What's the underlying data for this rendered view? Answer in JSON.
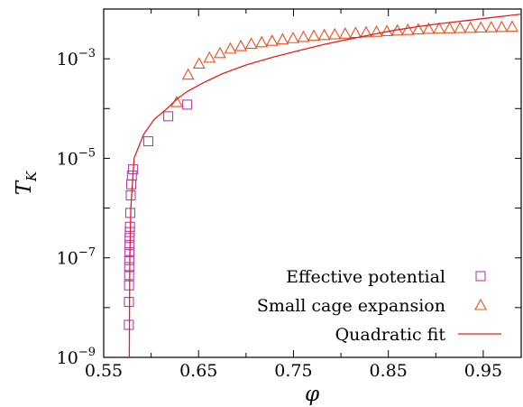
{
  "chart_data": {
    "type": "scatter",
    "xlabel": "φ",
    "ylabel": "T_K",
    "ylabel_main": "T",
    "ylabel_sub": "K",
    "xlim": [
      0.55,
      0.99
    ],
    "ylim": [
      1e-09,
      0.01
    ],
    "yscale": "log",
    "xticks": [
      0.55,
      0.65,
      0.75,
      0.85,
      0.95
    ],
    "xtick_labels": [
      "0.55",
      "0.65",
      "0.75",
      "0.85",
      "0.95"
    ],
    "yticks": [
      1e-09,
      1e-07,
      1e-05,
      0.001
    ],
    "ytick_labels": [
      {
        "base": "10",
        "exp": "−9"
      },
      {
        "base": "10",
        "exp": "−7"
      },
      {
        "base": "10",
        "exp": "−5"
      },
      {
        "base": "10",
        "exp": "−3"
      }
    ],
    "grid": false,
    "legend_position": "bottom-right",
    "series": [
      {
        "name": "Effective potential",
        "marker": "square",
        "color": "#b040b0",
        "points": [
          [
            0.5765,
            4.5e-09
          ],
          [
            0.5766,
            1.3e-08
          ],
          [
            0.5767,
            2.8e-08
          ],
          [
            0.5768,
            4.5e-08
          ],
          [
            0.5769,
            6.5e-08
          ],
          [
            0.577,
            9e-08
          ],
          [
            0.5771,
            1.3e-07
          ],
          [
            0.5772,
            1.8e-07
          ],
          [
            0.5773,
            2.5e-07
          ],
          [
            0.5775,
            3.3e-07
          ],
          [
            0.5777,
            4.2e-07
          ],
          [
            0.578,
            8e-07
          ],
          [
            0.5785,
            1.8e-06
          ],
          [
            0.579,
            3e-06
          ],
          [
            0.5797,
            4.5e-06
          ],
          [
            0.581,
            6e-06
          ],
          [
            0.597,
            2.2e-05
          ],
          [
            0.618,
            7e-05
          ],
          [
            0.638,
            0.00012
          ]
        ]
      },
      {
        "name": "Small cage expansion",
        "marker": "triangle",
        "color": "#e8501e",
        "points": [
          [
            0.627,
            0.000135
          ],
          [
            0.639,
            0.00048
          ],
          [
            0.6505,
            0.0008
          ],
          [
            0.6615,
            0.00105
          ],
          [
            0.6725,
            0.0013
          ],
          [
            0.6835,
            0.0016
          ],
          [
            0.6945,
            0.0018
          ],
          [
            0.7055,
            0.002
          ],
          [
            0.7165,
            0.00215
          ],
          [
            0.7275,
            0.0023
          ],
          [
            0.7385,
            0.00245
          ],
          [
            0.7495,
            0.0026
          ],
          [
            0.7605,
            0.00275
          ],
          [
            0.7715,
            0.0029
          ],
          [
            0.7825,
            0.003
          ],
          [
            0.7935,
            0.0031
          ],
          [
            0.8045,
            0.0032
          ],
          [
            0.8155,
            0.0033
          ],
          [
            0.8265,
            0.0034
          ],
          [
            0.8375,
            0.0035
          ],
          [
            0.8485,
            0.0036
          ],
          [
            0.8595,
            0.0037
          ],
          [
            0.8705,
            0.0038
          ],
          [
            0.8815,
            0.0039
          ],
          [
            0.8925,
            0.004
          ],
          [
            0.9035,
            0.00405
          ],
          [
            0.9145,
            0.0041
          ],
          [
            0.9255,
            0.00415
          ],
          [
            0.9365,
            0.0042
          ],
          [
            0.9475,
            0.00425
          ],
          [
            0.9585,
            0.0043
          ],
          [
            0.9695,
            0.00435
          ],
          [
            0.9805,
            0.0044
          ]
        ]
      },
      {
        "name": "Quadratic fit",
        "marker": "line",
        "color": "#e02020",
        "points": [
          [
            0.577,
            1e-09
          ],
          [
            0.5772,
            1e-08
          ],
          [
            0.5775,
            1e-07
          ],
          [
            0.5786,
            1e-06
          ],
          [
            0.582,
            1e-05
          ],
          [
            0.592,
            3e-05
          ],
          [
            0.603,
            6e-05
          ],
          [
            0.618,
            0.000105
          ],
          [
            0.628,
            0.00016
          ],
          [
            0.638,
            0.00022
          ],
          [
            0.655,
            0.00033
          ],
          [
            0.675,
            0.0005
          ],
          [
            0.7,
            0.00075
          ],
          [
            0.73,
            0.0011
          ],
          [
            0.755,
            0.00145
          ],
          [
            0.78,
            0.0019
          ],
          [
            0.805,
            0.0024
          ],
          [
            0.83,
            0.003
          ],
          [
            0.855,
            0.0037
          ],
          [
            0.88,
            0.0044
          ],
          [
            0.905,
            0.0051
          ],
          [
            0.93,
            0.0058
          ],
          [
            0.955,
            0.0066
          ],
          [
            0.98,
            0.0075
          ],
          [
            0.99,
            0.0079
          ]
        ]
      }
    ]
  }
}
